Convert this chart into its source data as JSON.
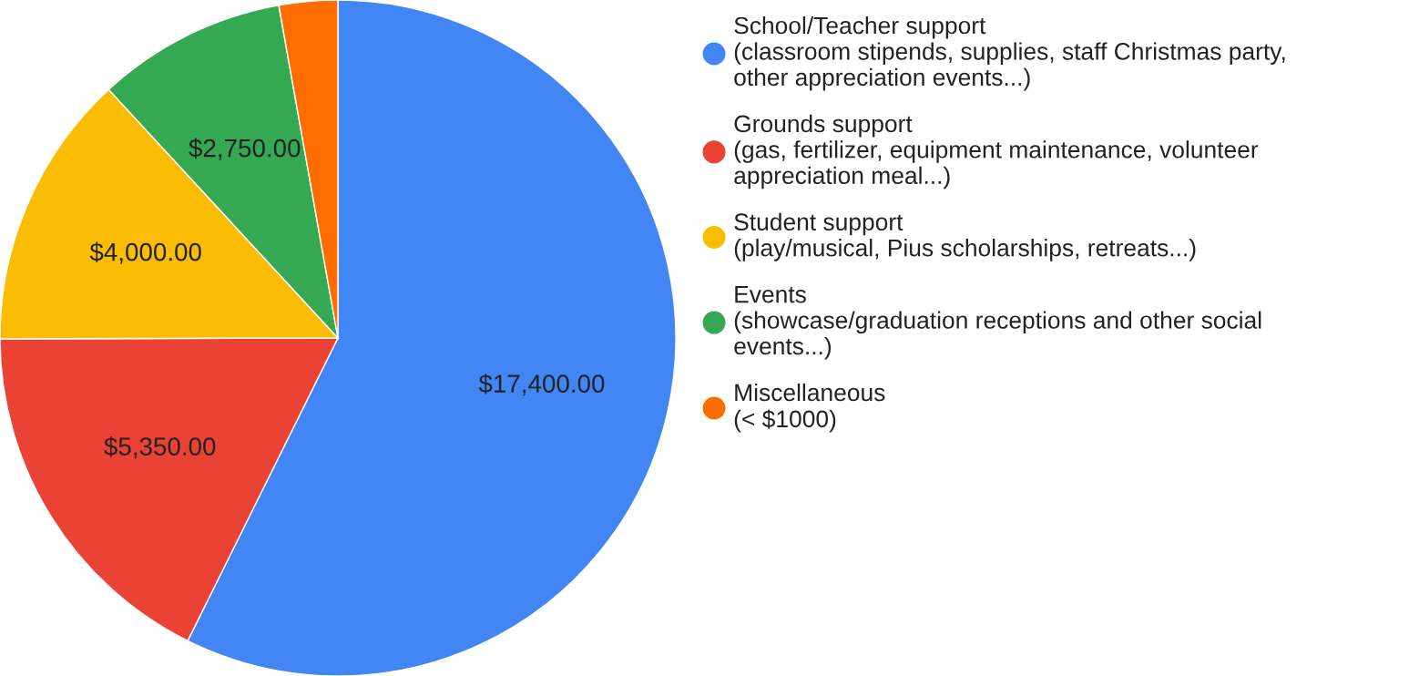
{
  "chart_data": {
    "type": "pie",
    "categories": [
      "School/Teacher support\n(classroom stipends, supplies, staff Christmas party,\nother appreciation events...)",
      "Grounds support\n(gas, fertilizer, equipment maintenance, volunteer\nappreciation meal...)",
      "Student support\n(play/musical, Pius scholarships, retreats...)",
      "Events\n(showcase/graduation receptions and other social\nevents...)",
      "Miscellaneous\n(< $1000)"
    ],
    "values": [
      17400,
      5350,
      4000,
      2750,
      850
    ],
    "value_labels": [
      "$17,400.00",
      "$5,350.00",
      "$4,000.00",
      "$2,750.00",
      null
    ],
    "colors": [
      "#4285f4",
      "#ea4335",
      "#fbbc04",
      "#34a853",
      "#ff6d01"
    ],
    "legend": "right"
  }
}
